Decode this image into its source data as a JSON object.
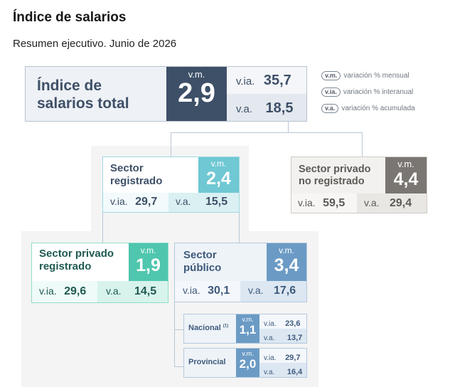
{
  "title": "Índice de salarios",
  "subtitle": "Resumen ejecutivo. Junio de 2026",
  "labels": {
    "vm": "v.m.",
    "via": "v.ia.",
    "va": "v.a."
  },
  "legend": [
    {
      "abbr": "v.m.",
      "desc": "variación % mensual"
    },
    {
      "abbr": "v.ia.",
      "desc": "variación % interanual"
    },
    {
      "abbr": "v.a.",
      "desc": "variación % acumulada"
    }
  ],
  "nodes": {
    "total": {
      "name_l1": "Índice de",
      "name_l2": "salarios total",
      "vm": "2,9",
      "via": "35,7",
      "va": "18,5"
    },
    "registrado": {
      "name_l1": "Sector",
      "name_l2": "registrado",
      "vm": "2,4",
      "via": "29,7",
      "va": "15,5"
    },
    "no_registrado": {
      "name_l1": "Sector privado",
      "name_l2": "no registrado",
      "vm": "4,4",
      "via": "59,5",
      "va": "29,4"
    },
    "privado_registrado": {
      "name_l1": "Sector privado",
      "name_l2": "registrado",
      "vm": "1,9",
      "via": "29,6",
      "va": "14,5"
    },
    "publico": {
      "name_l1": "Sector",
      "name_l2": "público",
      "vm": "3,4",
      "via": "30,1",
      "va": "17,6"
    },
    "nacional": {
      "name": "Nacional",
      "note": "(1)",
      "vm": "1,1",
      "via": "23,6",
      "va": "13,7"
    },
    "provincial": {
      "name": "Provincial",
      "vm": "2,0",
      "via": "29,7",
      "va": "16,4"
    }
  },
  "colors": {
    "total": "#3e5068",
    "registrado": "#6fc8d3",
    "no_registrado": "#7a7672",
    "privado_registrado": "#4fc6ae",
    "publico": "#6b9bc5"
  }
}
